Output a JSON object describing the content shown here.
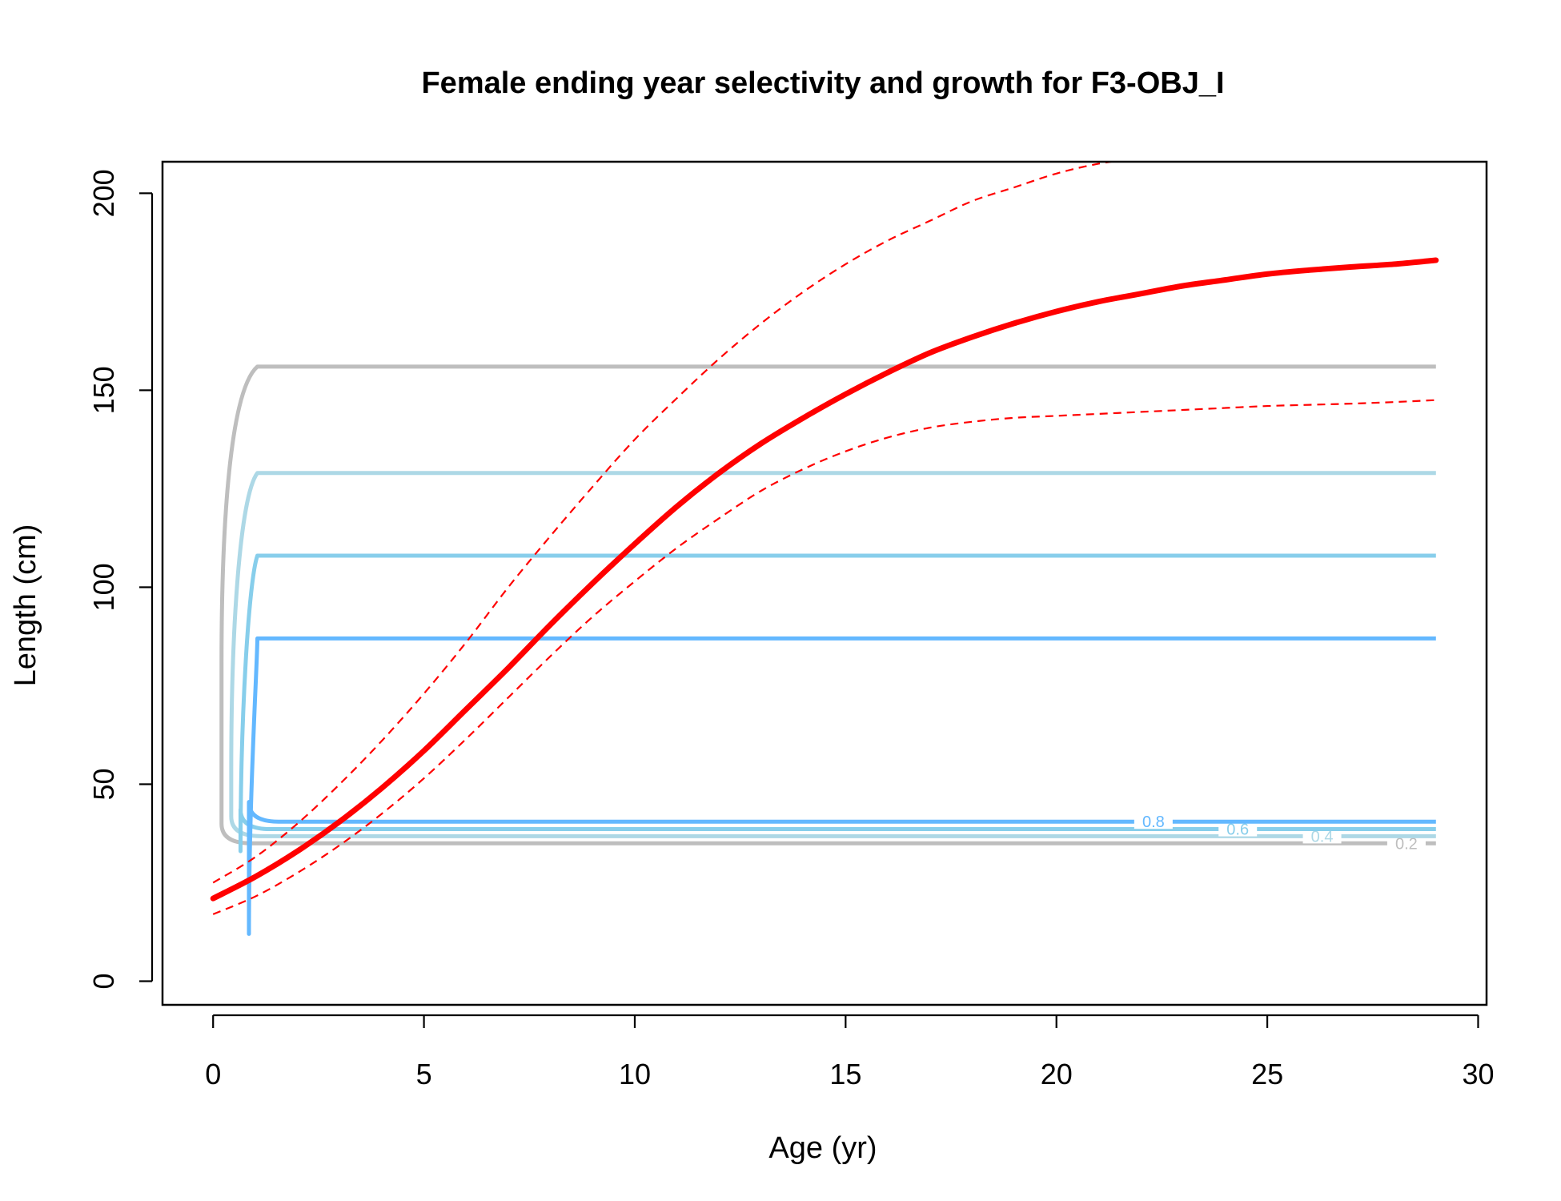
{
  "chart_data": {
    "type": "line",
    "title": "Female ending year selectivity and growth for F3-OBJ_I",
    "xlabel": "Age (yr)",
    "ylabel": "Length (cm)",
    "xlim": [
      -1.2,
      30.2
    ],
    "ylim": [
      -6,
      208
    ],
    "xticks": [
      0,
      5,
      10,
      15,
      20,
      25,
      30
    ],
    "yticks": [
      0,
      50,
      100,
      150,
      200
    ],
    "grid": false,
    "colors": {
      "growth": "#ff0000",
      "interval": "#ff0000",
      "contour_0.2": "#bebebe",
      "contour_0.4": "#add8e6",
      "contour_0.6": "#87ceeb",
      "contour_0.8": "#63b8ff"
    },
    "growth_curve": {
      "x": [
        0,
        1,
        2,
        3,
        4,
        5,
        6,
        7,
        8,
        9,
        10,
        11,
        12,
        13,
        14,
        15,
        16,
        17,
        18,
        19,
        20,
        21,
        22,
        23,
        24,
        25,
        26,
        27,
        28,
        29
      ],
      "y": [
        21,
        26.5,
        33,
        40.5,
        49,
        58.5,
        69,
        79.5,
        90.5,
        101,
        111,
        120.5,
        129,
        136.5,
        143,
        149,
        154.5,
        159.5,
        163.5,
        167,
        170,
        172.5,
        174.5,
        176.5,
        178,
        179.5,
        180.5,
        181.3,
        182,
        183
      ]
    },
    "upper_interval": {
      "x": [
        0,
        1,
        2,
        3,
        4,
        5,
        6,
        7,
        8,
        9,
        10,
        11,
        12,
        13,
        14,
        15,
        16,
        17,
        18,
        19,
        20,
        21,
        22
      ],
      "y": [
        25,
        31.5,
        40,
        50,
        61,
        73,
        86,
        100,
        113,
        125.5,
        137.5,
        148,
        158,
        167,
        175,
        182,
        188,
        193,
        198,
        201.5,
        205,
        207.5,
        209
      ]
    },
    "lower_interval": {
      "x": [
        0,
        1,
        2,
        3,
        4,
        5,
        6,
        7,
        8,
        9,
        10,
        11,
        12,
        13,
        14,
        15,
        16,
        17,
        18,
        19,
        20,
        21,
        22,
        23,
        24,
        25,
        26,
        27,
        28,
        29
      ],
      "y": [
        17,
        21.5,
        27.5,
        34.5,
        42.5,
        51.5,
        61.5,
        72,
        82.5,
        92.5,
        101.5,
        110,
        117.5,
        124.5,
        130,
        134.5,
        138,
        140.5,
        142,
        143,
        143.5,
        144,
        144.5,
        145,
        145.5,
        146,
        146.3,
        146.6,
        147,
        147.5
      ]
    },
    "selectivity_contours": [
      {
        "level": "0.2",
        "label": "0.2",
        "bottom": 35,
        "top": 156,
        "x_left": 0.2,
        "x_right": 29,
        "label_x": 28.3
      },
      {
        "level": "0.4",
        "label": "0.4",
        "bottom": 36.8,
        "top": 129,
        "x_left": 0.43,
        "x_right": 29,
        "label_x": 26.3
      },
      {
        "level": "0.6",
        "label": "0.6",
        "bottom": 38.6,
        "top": 108,
        "x_left": 0.65,
        "x_right": 29,
        "label_x": 24.3
      },
      {
        "level": "0.8",
        "label": "0.8",
        "bottom": 40.5,
        "top": 87,
        "x_left": 0.85,
        "x_right": 29,
        "label_x": 22.3
      }
    ]
  }
}
